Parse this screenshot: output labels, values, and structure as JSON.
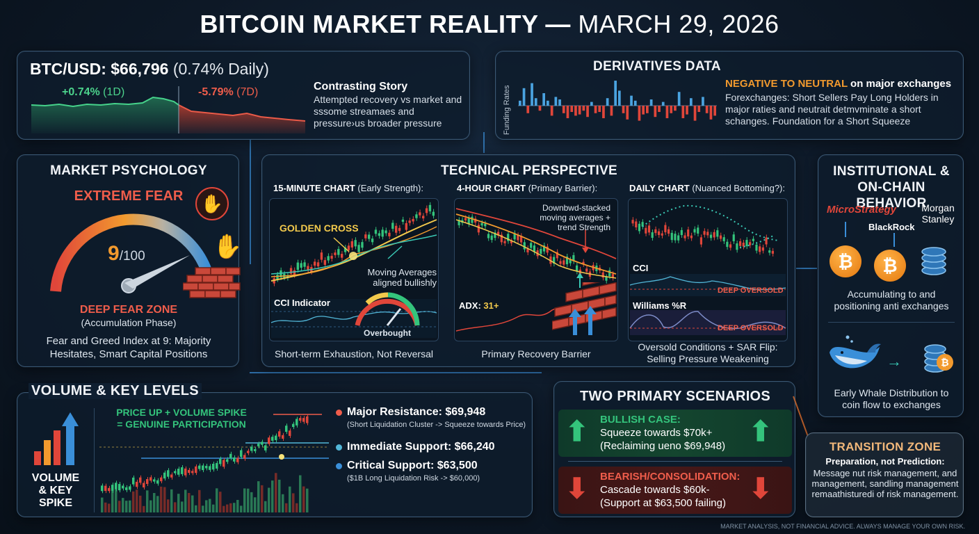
{
  "title": {
    "main": "BITCOIN MARKET REALITY —",
    "date": "MARCH 29, 2026"
  },
  "price": {
    "pair_label": "BTC/USD: $66,796",
    "daily_change": "(0.74% Daily)",
    "change_1d_value": "+0.74%",
    "change_1d_period": "(1D)",
    "change_7d_value": "-5.79%",
    "change_7d_period": "(7D)",
    "story_title": "Contrasting Story",
    "story_text": "Attempted recovery vs market and sssome streamaes and pressure›us broader pressure"
  },
  "derivatives": {
    "title": "DERIVATIVES DATA",
    "axis_label": "Funding Rates",
    "headline_strong": "NEGATIVE TO NEUTRAL",
    "headline_rest": "on major exchanges",
    "text": "Forexchanges: Short Sellers Pay Long Holders in major raties and neutrait detmvminate a short schanges. Foundation for a Short Squeeze",
    "funding_values": [
      0.2,
      0.7,
      -0.3,
      0.9,
      0.3,
      -0.2,
      0.5,
      0.2,
      -0.4,
      0.35,
      0.25,
      -0.3,
      -0.5,
      -0.25,
      -0.4,
      -0.35,
      -0.2,
      -0.45,
      0.15,
      -0.3,
      -0.25,
      -0.5,
      0.3,
      -0.4,
      1.0,
      0.6,
      -0.3,
      -0.55,
      0.4,
      0.2,
      -0.6,
      -0.35,
      -0.3,
      0.25,
      -0.45,
      -0.25,
      0.15,
      -0.5,
      -0.3,
      -0.2,
      0.55,
      -0.5,
      -0.35,
      0.3,
      -0.6,
      -0.25,
      0.35,
      -0.3,
      -0.55,
      -0.4
    ]
  },
  "psychology": {
    "title": "MARKET PSYCHOLOGY",
    "status": "EXTREME FEAR",
    "score": "9",
    "score_max": "/100",
    "zone": "DEEP FEAR ZONE",
    "phase": "(Accumulation Phase)",
    "description": "Fear and Greed Index at 9: Majority Hesitates, Smart Capital Positions",
    "gauge_value": 9
  },
  "technical": {
    "title": "TECHNICAL PERSPECTIVE",
    "chart15_title": "15-MINUTE CHART",
    "chart15_sub": "(Early Strength):",
    "golden_cross": "GOLDEN CROSS",
    "ma_note": "Moving Averages aligned bullishly",
    "cci_label": "CCI Indicator",
    "overbought": "Overbought",
    "chart15_caption": "Short-term Exhaustion, Not Reversal",
    "chart4h_title": "4-HOUR CHART",
    "chart4h_sub": "(Primary Barrier):",
    "chart4h_note": "Downbwd-stacked moving averages + trend Strength",
    "adx_label": "ADX:",
    "adx_value": "31+",
    "chart4h_caption": "Primary Recovery Barrier",
    "daily_title": "DAILY CHART",
    "daily_sub": "(Nuanced Bottoming?):",
    "cci_short": "CCI",
    "deep_oversold_1": "DEEP OVERSOLD",
    "williams": "Williams %R",
    "deep_oversold_2": "DEEP OVERSOLD",
    "daily_caption": "Oversold Conditions + SAR Flip: Selling Pressure Weakening"
  },
  "institutional": {
    "title": "INSTITUTIONAL & ON-CHAIN BEHAVIOR",
    "brand_1": "MicroStrategy",
    "brand_2": "Morgan Stanley",
    "brand_3": "BlackRock",
    "accumulating": "Accumulating to and positioning anti exchanges",
    "whale": "Early Whale Distribution to coin flow to exchanges",
    "coin_symbol": "₿"
  },
  "volume": {
    "title": "VOLUME & KEY LEVELS",
    "side_label_1": "VOLUME",
    "side_label_2": "& KEY",
    "side_label_3": "SPIKE",
    "headline_1": "PRICE UP + VOLUME SPIKE",
    "headline_2": "= GENUINE PARTICIPATION",
    "resistance": "Major Resistance: $69,948",
    "resistance_note": "(Short Liquidation Cluster -> Squeeze towards Price)",
    "support_1": "Immediate Support: $66,240",
    "support_2": "Critical Support: $63,500",
    "support_2_note": "($1B Long Liquidation Risk -> $60,000)"
  },
  "scenarios": {
    "title": "TWO PRIMARY SCENARIOS",
    "bull_title": "BULLISH CASE:",
    "bull_text_1": "Squeeze towards $70k+",
    "bull_text_2": "(Reclaiming ueno $69,948)",
    "bear_title": "BEARISH/CONSOLIDATION:",
    "bear_text_1": "Cascade towards $60k-",
    "bear_text_2": "(Support at $63,500 failing)"
  },
  "transition": {
    "title": "TRANSITION ZONE",
    "subtitle": "Preparation, not Prediction:",
    "text": "Message nut risk management, and management, sandling management remaathisturedi of risk management."
  },
  "footer": "MARKET ANALYSIS, NOT FINANCIAL ADVICE. ALWAYS MANAGE YOUR OWN RISK.",
  "colors": {
    "green": "#34c47c",
    "red": "#e0463a",
    "orange": "#f29a2e",
    "blue": "#3a8fd9",
    "yellow": "#f2c94c"
  }
}
